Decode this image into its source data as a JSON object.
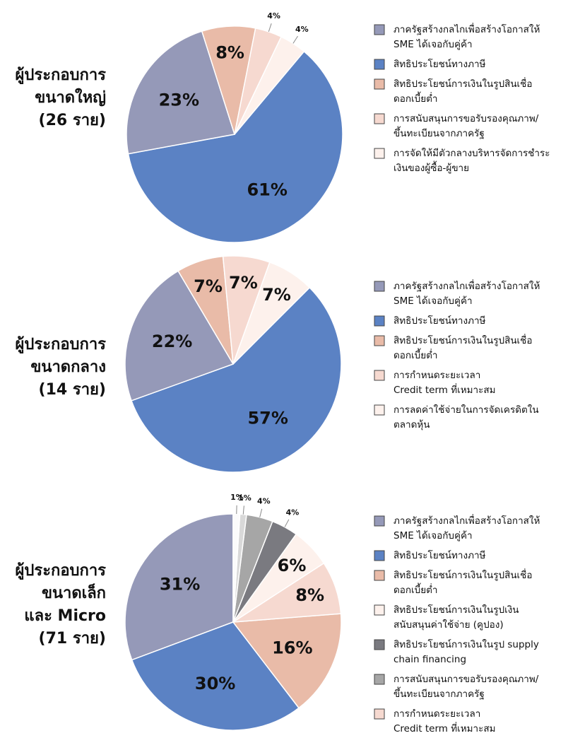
{
  "chart_data": [
    {
      "type": "pie",
      "title": [
        "ผู้ประกอบการ",
        "ขนาดใหญ่",
        "(26 ราย)"
      ],
      "values": [
        61,
        23,
        8,
        4,
        4
      ],
      "value_labels": [
        "61%",
        "23%",
        "8%",
        "4%",
        "4%"
      ],
      "colors": [
        "#5b82c4",
        "#9599b8",
        "#e9bba8",
        "#f6d9d0",
        "#fdf1ec"
      ],
      "start_angle": 40,
      "direction": "clockwise",
      "legend": [
        {
          "label": [
            "ภาครัฐสร้างกลไกเพื่อสร้างโอกาสให้",
            "SME ได้เจอกับคู่ค้า"
          ],
          "color": "#9599b8"
        },
        {
          "label": [
            "สิทธิประโยชน์ทางภาษี"
          ],
          "color": "#5b82c4"
        },
        {
          "label": [
            "สิทธิประโยชน์การเงินในรูปสินเชื่อ",
            "ดอกเบี้ยต่ำ"
          ],
          "color": "#e9bba8"
        },
        {
          "label": [
            "การสนับสนุนการขอรับรองคุณภาพ/",
            "ขึ้นทะเบียนจากภาครัฐ"
          ],
          "color": "#f6d9d0"
        },
        {
          "label": [
            "การจัดให้มีตัวกลางบริหารจัดการชำระ",
            "เงินของผู้ซื้อ-ผู้ขาย"
          ],
          "color": "#fdf1ec"
        }
      ]
    },
    {
      "type": "pie",
      "title": [
        "ผู้ประกอบการ",
        "ขนาดกลาง",
        "(14 ราย)"
      ],
      "values": [
        57,
        22,
        7,
        7,
        7
      ],
      "value_labels": [
        "57%",
        "22%",
        "7%",
        "7%",
        "7%"
      ],
      "colors": [
        "#5b82c4",
        "#9599b8",
        "#e9bba8",
        "#f6d9d0",
        "#fdf1ec"
      ],
      "start_angle": 45,
      "direction": "clockwise",
      "legend": [
        {
          "label": [
            "ภาครัฐสร้างกลไกเพื่อสร้างโอกาสให้",
            "SME ได้เจอกับคู่ค้า"
          ],
          "color": "#9599b8"
        },
        {
          "label": [
            "สิทธิประโยชน์ทางภาษี"
          ],
          "color": "#5b82c4"
        },
        {
          "label": [
            "สิทธิประโยชน์การเงินในรูปสินเชื่อ",
            "ดอกเบี้ยต่ำ"
          ],
          "color": "#e9bba8"
        },
        {
          "label": [
            "การกำหนดระยะเวลา",
            "Credit term ที่เหมาะสม"
          ],
          "color": "#f6d9d0"
        },
        {
          "label": [
            "การลดค่าใช้จ่ายในการจัดเครดิตใน",
            "ตลาดหุ้น"
          ],
          "color": "#fdf1ec"
        }
      ]
    },
    {
      "type": "pie",
      "title": [
        "ผู้ประกอบการ",
        "ขนาดเล็ก",
        "และ Micro",
        "(71 ราย)"
      ],
      "values": [
        31,
        30,
        16,
        8,
        6,
        4,
        4,
        1,
        1
      ],
      "value_labels": [
        "31%",
        "30%",
        "16%",
        "8%",
        "6%",
        "4%",
        "4%",
        "1%",
        "1%"
      ],
      "colors": [
        "#9599b8",
        "#5b82c4",
        "#e9bba8",
        "#f6d9d0",
        "#fdf1ec",
        "#7a7a80",
        "#a6a6a6",
        "#d9d9d9",
        "#fbfbfb"
      ],
      "start_angle": 0,
      "direction": "counterclockwise",
      "legend": [
        {
          "label": [
            "ภาครัฐสร้างกลไกเพื่อสร้างโอกาสให้",
            "SME ได้เจอกับคู่ค้า"
          ],
          "color": "#9599b8"
        },
        {
          "label": [
            "สิทธิประโยชน์ทางภาษี"
          ],
          "color": "#5b82c4"
        },
        {
          "label": [
            "สิทธิประโยชน์การเงินในรูปสินเชื่อ",
            "ดอกเบี้ยต่ำ"
          ],
          "color": "#e9bba8"
        },
        {
          "label": [
            "สิทธิประโยชน์การเงินในรูปเงิน",
            "สนับสนุนค่าใช้จ่าย (คูปอง)"
          ],
          "color": "#fdf1ec"
        },
        {
          "label": [
            "สิทธิประโยชน์การเงินในรูป supply",
            "chain financing"
          ],
          "color": "#7a7a80"
        },
        {
          "label": [
            "การสนับสนุนการขอรับรองคุณภาพ/",
            "ขึ้นทะเบียนจากภาครัฐ"
          ],
          "color": "#a6a6a6"
        },
        {
          "label": [
            "การกำหนดระยะเวลา",
            "Credit term ที่เหมาะสม"
          ],
          "color": "#f6d9d0"
        }
      ]
    }
  ]
}
